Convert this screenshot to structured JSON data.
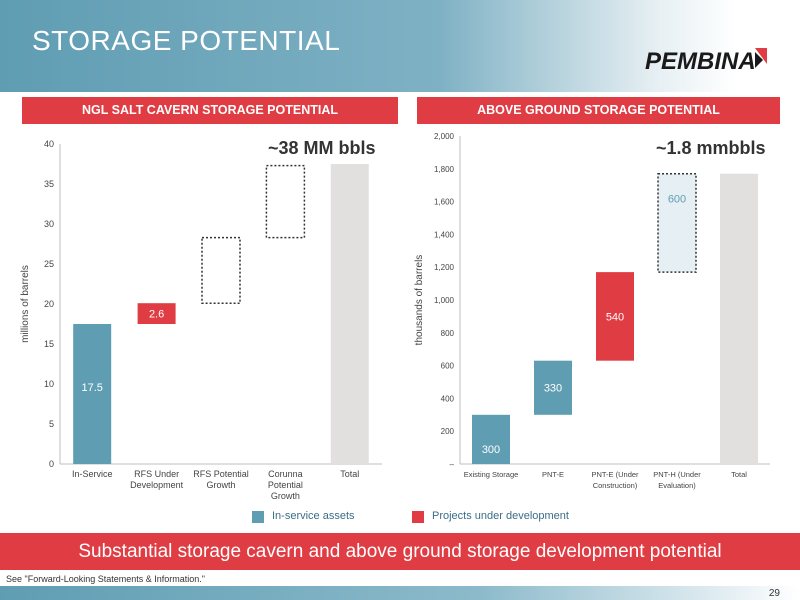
{
  "page": {
    "title": "STORAGE POTENTIAL",
    "logo_text": "PEMBINA",
    "banner": "Substantial storage cavern and above ground storage development potential",
    "disclaimer": "See \"Forward-Looking Statements & Information.\"",
    "page_number": "29"
  },
  "legend": [
    {
      "label": "In-service assets",
      "color": "#5f9db3"
    },
    {
      "label": "Projects under development",
      "color": "#e03c44"
    }
  ],
  "chart_data": [
    {
      "type": "bar",
      "subtype": "waterfall",
      "title": "NGL SALT CAVERN STORAGE POTENTIAL",
      "annotation": "~38 MM bbls",
      "ylabel": "millions of barrels",
      "xlabel": "",
      "ylim": [
        0,
        40
      ],
      "yticks": [
        0,
        5,
        10,
        15,
        20,
        25,
        30,
        35,
        40
      ],
      "ytick_labels": [
        "0",
        "5",
        "10",
        "15",
        "20",
        "25",
        "30",
        "35",
        "40"
      ],
      "categories": [
        [
          "In-Service"
        ],
        [
          "RFS Under",
          "Development"
        ],
        [
          "RFS Potential",
          "Growth"
        ],
        [
          "Corunna",
          "Potential",
          "Growth"
        ],
        [
          "Total"
        ]
      ],
      "bars": [
        {
          "base": 0,
          "value": 17.5,
          "label": "17.5",
          "style": "in-service"
        },
        {
          "base": 17.5,
          "value": 2.6,
          "label": "2.6",
          "style": "development"
        },
        {
          "base": 20.1,
          "value": 8.2,
          "label": "",
          "style": "potential"
        },
        {
          "base": 28.3,
          "value": 9.0,
          "label": "",
          "style": "potential"
        },
        {
          "base": 0,
          "value": 37.5,
          "label": "",
          "style": "total"
        }
      ],
      "grid": false
    },
    {
      "type": "bar",
      "subtype": "waterfall",
      "title": "ABOVE GROUND STORAGE POTENTIAL",
      "annotation": "~1.8 mmbbls",
      "ylabel": "thousands of barrels",
      "xlabel": "",
      "ylim": [
        0,
        2000
      ],
      "yticks": [
        0,
        200,
        400,
        600,
        800,
        1000,
        1200,
        1400,
        1600,
        1800,
        2000
      ],
      "ytick_labels": [
        "–",
        "200",
        "400",
        "600",
        "800",
        "1,000",
        "1,200",
        "1,400",
        "1,600",
        "1,800",
        "2,000"
      ],
      "categories": [
        [
          "Existing Storage"
        ],
        [
          "PNT-E"
        ],
        [
          "PNT-E (Under",
          "Construction)"
        ],
        [
          "PNT-H (Under",
          "Evaluation)"
        ],
        [
          "Total"
        ]
      ],
      "bars": [
        {
          "base": 0,
          "value": 300,
          "label": "300",
          "style": "in-service"
        },
        {
          "base": 300,
          "value": 330,
          "label": "330",
          "style": "in-service"
        },
        {
          "base": 630,
          "value": 540,
          "label": "540",
          "style": "development"
        },
        {
          "base": 1170,
          "value": 600,
          "label": "600",
          "style": "evaluation"
        },
        {
          "base": 0,
          "value": 1770,
          "label": "",
          "style": "total"
        }
      ],
      "grid": false
    }
  ]
}
